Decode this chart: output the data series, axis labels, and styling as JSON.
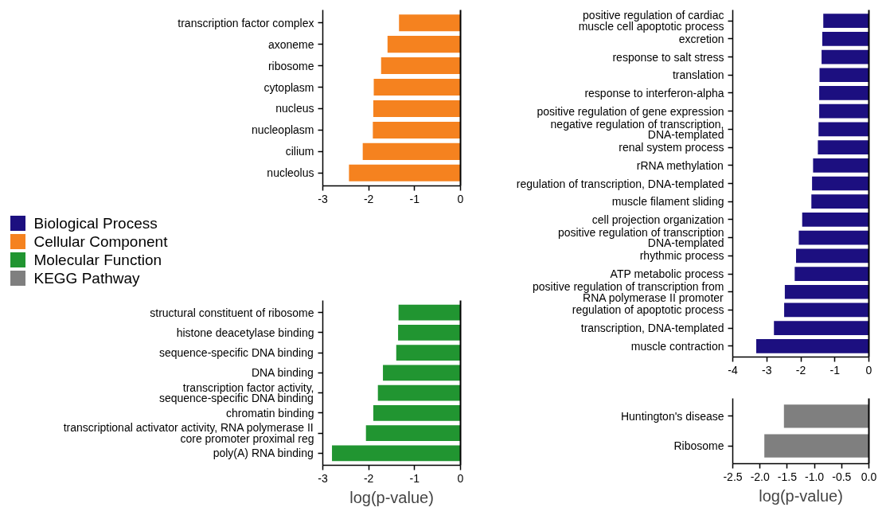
{
  "chart_data": [
    {
      "type": "bar",
      "orientation": "horizontal",
      "legend": "left",
      "categories": [
        "positive regulation of cardiac\nmuscle cell apoptotic process",
        "excretion",
        "response to salt stress",
        "translation",
        "response to interferon-alpha",
        "positive regulation of gene expression",
        "negative regulation of transcription,\nDNA-templated",
        "renal system process",
        "rRNA methylation",
        "regulation of transcription, DNA-templated",
        "muscle filament sliding",
        "cell projection organization",
        "positive regulation of transcription\nDNA-templated",
        "rhythmic process",
        "ATP metabolic process",
        "positive regulation of transcription from\nRNA polymerase II promoter",
        "regulation of apoptotic process",
        "transcription, DNA-templated",
        "muscle contraction"
      ],
      "series": [
        {
          "name": "Biological Process",
          "color": "#1c0f80",
          "values": [
            -1.34,
            -1.37,
            -1.39,
            -1.45,
            -1.46,
            -1.46,
            -1.48,
            -1.5,
            -1.64,
            -1.67,
            -1.69,
            -1.96,
            -2.06,
            -2.14,
            -2.18,
            -2.47,
            -2.49,
            -2.79,
            -3.31
          ]
        }
      ],
      "xlim": [
        -4,
        0
      ],
      "xticks": [
        -4,
        -3,
        -2,
        -1,
        0
      ]
    },
    {
      "type": "bar",
      "orientation": "horizontal",
      "legend": "left",
      "categories": [
        "transcription factor complex",
        "axoneme",
        "ribosome",
        "cytoplasm",
        "nucleus",
        "nucleoplasm",
        "cilium",
        "nucleolus"
      ],
      "series": [
        {
          "name": "Cellular Component",
          "color": "#f5821f",
          "values": [
            -1.34,
            -1.59,
            -1.73,
            -1.89,
            -1.9,
            -1.91,
            -2.13,
            -2.43
          ]
        }
      ],
      "xlim": [
        -3,
        0
      ],
      "xticks": [
        -3,
        -2,
        -1,
        0
      ]
    },
    {
      "type": "bar",
      "orientation": "horizontal",
      "legend": "left",
      "xlabel": "log(p-value)",
      "categories": [
        "structural constituent of ribosome",
        "histone deacetylase binding",
        "sequence-specific DNA binding",
        "DNA binding",
        "transcription factor activity,\nsequence-specific DNA binding",
        "chromatin binding",
        "transcriptional activator activity, RNA polymerase II\ncore promoter proximal reg",
        "poly(A) RNA binding"
      ],
      "series": [
        {
          "name": "Molecular Function",
          "color": "#219531",
          "values": [
            -1.35,
            -1.36,
            -1.4,
            -1.69,
            -1.8,
            -1.9,
            -2.06,
            -2.8
          ]
        }
      ],
      "xlim": [
        -3,
        0
      ],
      "xticks": [
        -3,
        -2,
        -1,
        0
      ]
    },
    {
      "type": "bar",
      "orientation": "horizontal",
      "legend": "left",
      "xlabel": "log(p-value)",
      "categories": [
        "Huntington's disease",
        "Ribosome"
      ],
      "series": [
        {
          "name": "KEGG Pathway",
          "color": "#7f7f7f",
          "values": [
            -1.56,
            -1.92
          ]
        }
      ],
      "xlim": [
        -2.5,
        0
      ],
      "xticks": [
        -2.5,
        {
          "value": -2.0,
          "label": "-2.0"
        },
        -1.5,
        {
          "value": -1.0,
          "label": "-1.0"
        },
        -0.5,
        {
          "value": 0.0,
          "label": "0.0"
        }
      ]
    }
  ]
}
